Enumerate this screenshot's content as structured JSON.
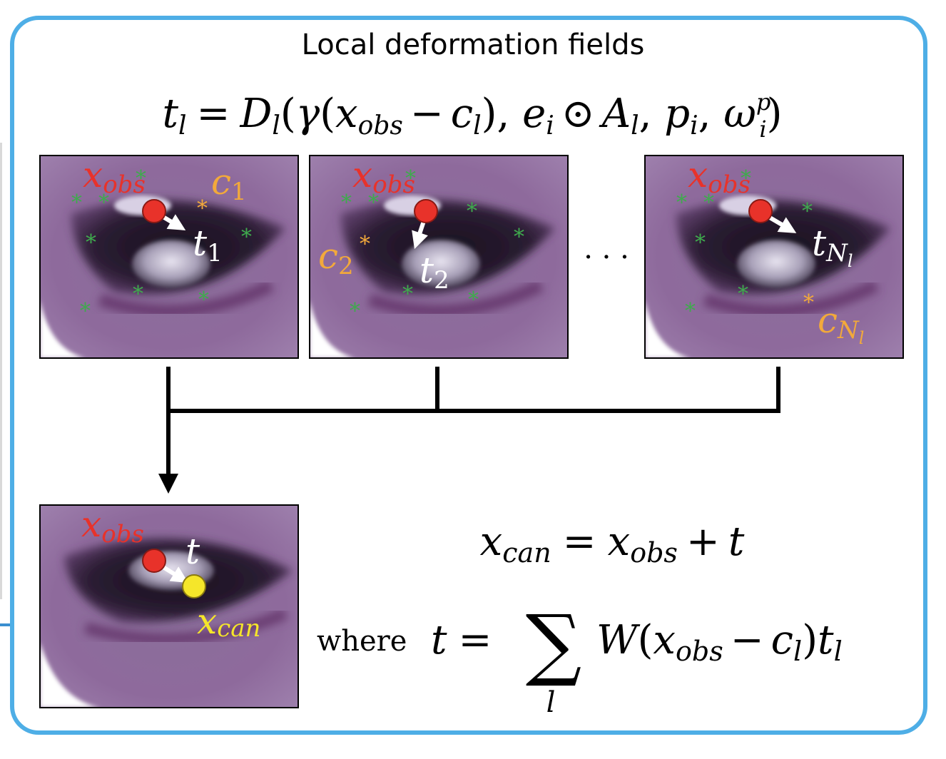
{
  "title": "Local deformation fields",
  "equation_top": {
    "lhs": "t",
    "lhs_sub": "l",
    "eq": "=",
    "D": "D",
    "D_sub": "l",
    "gamma": "γ",
    "x": "x",
    "x_sub": "obs",
    "minus": "−",
    "c": "c",
    "c_sub": "l",
    "e": "e",
    "e_sub": "i",
    "odot": "⊙",
    "A": "A",
    "A_sub": "l",
    "p": "p",
    "p_sub": "i",
    "omega": "ω",
    "omega_sub": "i",
    "omega_sup": "p"
  },
  "panels": [
    {
      "x_label": "x",
      "x_sub": "obs",
      "c_label": "c",
      "c_sub": "1",
      "t_label": "t",
      "t_sub": "1"
    },
    {
      "x_label": "x",
      "x_sub": "obs",
      "c_label": "c",
      "c_sub": "2",
      "t_label": "t",
      "t_sub": "2"
    },
    {
      "x_label": "x",
      "x_sub": "obs",
      "c_label": "c",
      "c_sub": "N",
      "c_subsub": "l",
      "t_label": "t",
      "t_sub": "N",
      "t_subsub": "l"
    }
  ],
  "ellipsis": "· · ·",
  "bottom_panel": {
    "x_label": "x",
    "x_sub": "obs",
    "t_label": "t",
    "can_label": "x",
    "can_sub": "can"
  },
  "equation_can": {
    "lhs": "x",
    "lhs_sub": "can",
    "eq": "=",
    "x": "x",
    "x_sub": "obs",
    "plus": "+",
    "t": "t"
  },
  "equation_sum": {
    "where": "where",
    "t": "t",
    "eq": "=",
    "sum": "∑",
    "sum_sub": "l",
    "W": "W",
    "x": "x",
    "x_sub": "obs",
    "minus": "−",
    "c": "c",
    "c_sub": "l",
    "t2": "t",
    "t2_sub": "l"
  },
  "colors": {
    "frame": "#4eaee6",
    "x_obs": "#e8322a",
    "c_label": "#f2a93b",
    "t_label": "#ffffff",
    "landmark": "#3faa4d",
    "x_can": "#f5e62a"
  }
}
